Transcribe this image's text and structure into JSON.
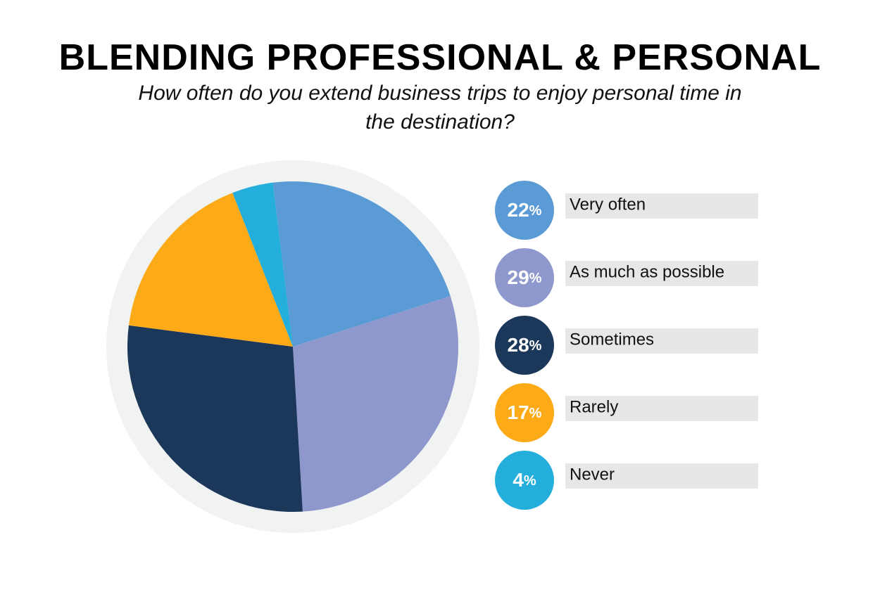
{
  "chart_data": {
    "type": "pie",
    "title": "BLENDING PROFESSIONAL & PERSONAL",
    "subtitle": "How often do you extend business trips to enjoy personal time in the destination?",
    "categories": [
      "Very often",
      "As much as possible",
      "Sometimes",
      "Rarely",
      "Never"
    ],
    "values": [
      22,
      29,
      28,
      17,
      4
    ],
    "value_labels": [
      "22%",
      "29%",
      "28%",
      "17%",
      "4%"
    ],
    "colors": [
      "#5a9bd6",
      "#8e98cc",
      "#1b375a",
      "#fcaa17",
      "#23aedb"
    ]
  }
}
